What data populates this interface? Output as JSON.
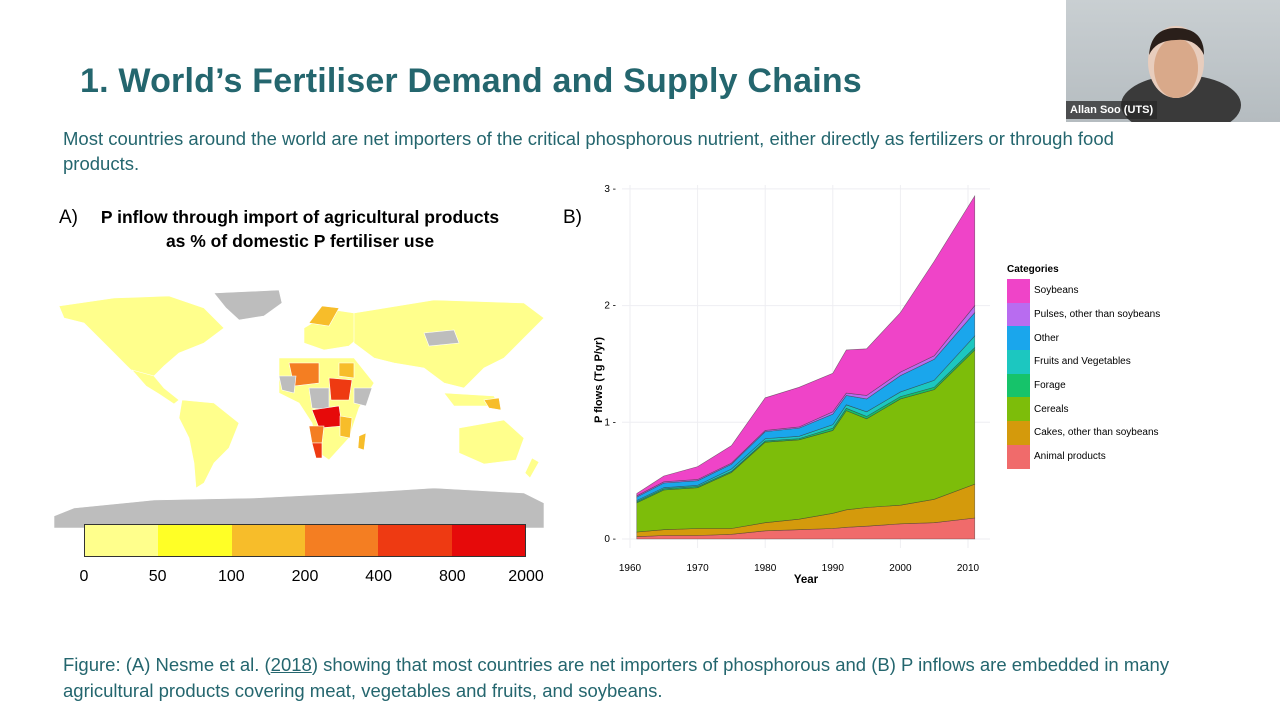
{
  "slide": {
    "title": "1. World’s Fertiliser Demand and Supply Chains",
    "subtitle": "Most countries around the world are net importers of the critical phosphorous nutrient, either directly as fertilizers or through food products.",
    "caption_before": "Figure: (A) Nesme et al. (",
    "caption_link": "2018",
    "caption_after": ") showing that most countries are net importers of phosphorous and (B) P inflows are embedded in many agricultural products covering meat, vegetables and fruits, and soybeans.",
    "title_color": "#24666e"
  },
  "webcam": {
    "name": "Allan Soo (UTS)"
  },
  "chart_data": [
    {
      "type": "map",
      "panel_label": "A)",
      "title": "P inflow through import of agricultural products as % of domestic P fertiliser use",
      "colorbar": {
        "ticks": [
          "0",
          "50",
          "100",
          "200",
          "400",
          "800",
          "2000"
        ],
        "colors": [
          "#ffff8c",
          "#ffff26",
          "#f7bd2a",
          "#f47e22",
          "#ee3a12",
          "#e60a0a"
        ],
        "no_data_color": "#bdbdbd"
      }
    },
    {
      "type": "area",
      "stacked": true,
      "panel_label": "B)",
      "xlabel": "Year",
      "ylabel": "P flows (Tg P/yr)",
      "xlim": [
        1960,
        2012
      ],
      "ylim": [
        0,
        3
      ],
      "xticks": [
        1960,
        1970,
        1980,
        1990,
        2000,
        2010
      ],
      "yticks": [
        0,
        1,
        2,
        3
      ],
      "grid": true,
      "legend_title": "Categories",
      "legend_placement": "right",
      "x": [
        1961,
        1965,
        1970,
        1975,
        1980,
        1985,
        1990,
        1992,
        1995,
        2000,
        2005,
        2011
      ],
      "series": [
        {
          "name": "Animal products",
          "color": "#f06b6b",
          "values": [
            0.02,
            0.03,
            0.03,
            0.04,
            0.07,
            0.08,
            0.09,
            0.1,
            0.11,
            0.13,
            0.14,
            0.18
          ]
        },
        {
          "name": "Cakes, other than soybeans",
          "color": "#d49a0c",
          "values": [
            0.04,
            0.05,
            0.06,
            0.05,
            0.07,
            0.09,
            0.13,
            0.15,
            0.16,
            0.16,
            0.2,
            0.29
          ]
        },
        {
          "name": "Cereals",
          "color": "#7dbd0a",
          "values": [
            0.25,
            0.34,
            0.35,
            0.48,
            0.69,
            0.68,
            0.71,
            0.85,
            0.76,
            0.91,
            0.94,
            1.15
          ]
        },
        {
          "name": "Forage",
          "color": "#16c36a",
          "values": [
            0.01,
            0.01,
            0.01,
            0.01,
            0.01,
            0.01,
            0.02,
            0.02,
            0.02,
            0.02,
            0.02,
            0.02
          ]
        },
        {
          "name": "Fruits and Vegetables",
          "color": "#1cc7c0",
          "values": [
            0.01,
            0.01,
            0.01,
            0.02,
            0.02,
            0.02,
            0.03,
            0.03,
            0.04,
            0.04,
            0.06,
            0.1
          ]
        },
        {
          "name": "Other",
          "color": "#1aa6ec",
          "values": [
            0.03,
            0.04,
            0.04,
            0.04,
            0.06,
            0.07,
            0.09,
            0.08,
            0.11,
            0.14,
            0.18,
            0.2
          ]
        },
        {
          "name": "Pulses, other than soybeans",
          "color": "#b86cf0",
          "values": [
            0.01,
            0.01,
            0.01,
            0.01,
            0.01,
            0.01,
            0.02,
            0.02,
            0.03,
            0.03,
            0.03,
            0.06
          ]
        },
        {
          "name": "Soybeans",
          "color": "#ef44c8",
          "values": [
            0.02,
            0.05,
            0.11,
            0.15,
            0.28,
            0.34,
            0.33,
            0.37,
            0.4,
            0.51,
            0.81,
            0.94
          ]
        }
      ]
    }
  ]
}
